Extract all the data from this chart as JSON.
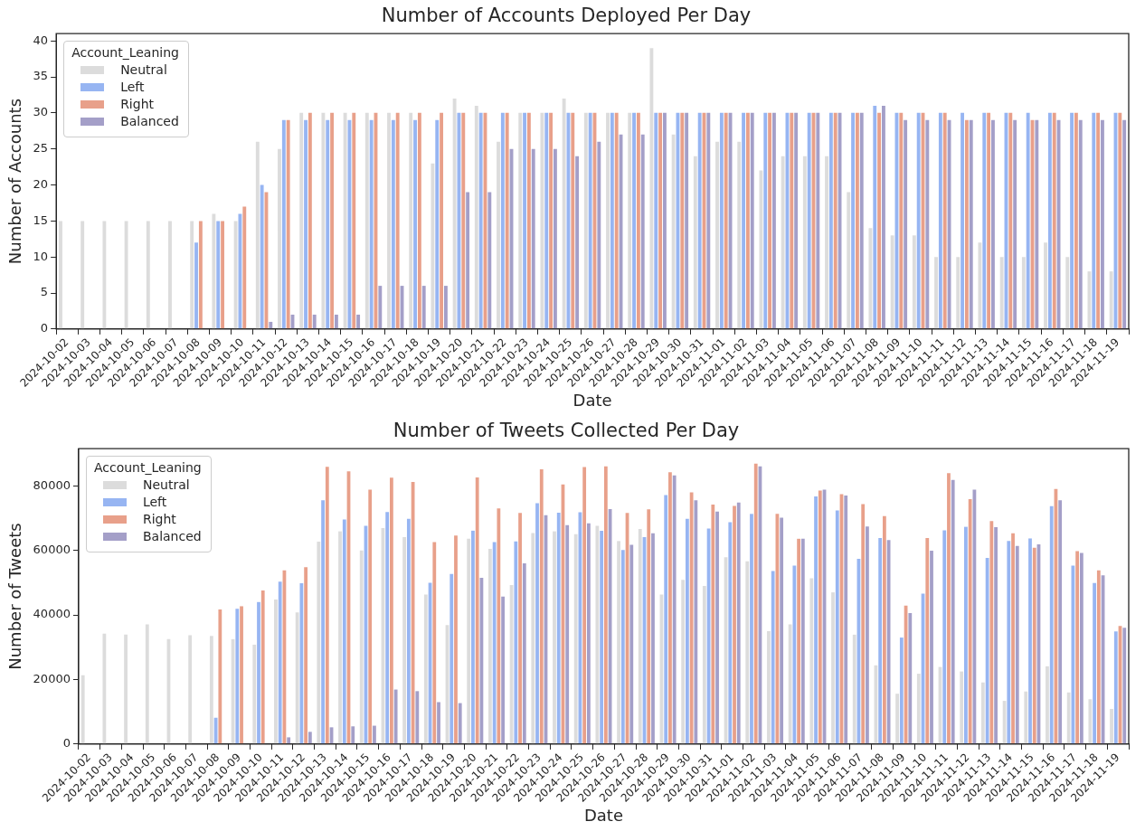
{
  "chart_data": [
    {
      "type": "bar",
      "title": "Number of Accounts Deployed Per Day",
      "xlabel": "Date",
      "ylabel": "Number of Accounts",
      "legend_title": "Account_Leaning",
      "legend": "top left",
      "categories": [
        "2024-10-02",
        "2024-10-03",
        "2024-10-04",
        "2024-10-05",
        "2024-10-06",
        "2024-10-07",
        "2024-10-08",
        "2024-10-09",
        "2024-10-10",
        "2024-10-11",
        "2024-10-12",
        "2024-10-13",
        "2024-10-14",
        "2024-10-15",
        "2024-10-16",
        "2024-10-17",
        "2024-10-18",
        "2024-10-19",
        "2024-10-20",
        "2024-10-21",
        "2024-10-22",
        "2024-10-23",
        "2024-10-24",
        "2024-10-25",
        "2024-10-26",
        "2024-10-27",
        "2024-10-28",
        "2024-10-29",
        "2024-10-30",
        "2024-10-31",
        "2024-11-01",
        "2024-11-02",
        "2024-11-03",
        "2024-11-04",
        "2024-11-05",
        "2024-11-06",
        "2024-11-07",
        "2024-11-08",
        "2024-11-09",
        "2024-11-10",
        "2024-11-11",
        "2024-11-12",
        "2024-11-13",
        "2024-11-14",
        "2024-11-15",
        "2024-11-16",
        "2024-11-17",
        "2024-11-18",
        "2024-11-19"
      ],
      "series": [
        {
          "name": "Neutral",
          "color": "#dcdcdc",
          "values": [
            15,
            15,
            15,
            15,
            15,
            15,
            15,
            16,
            15,
            26,
            25,
            30,
            30,
            30,
            30,
            30,
            30,
            23,
            32,
            31,
            26,
            30,
            30,
            32,
            30,
            30,
            30,
            39,
            27,
            24,
            26,
            26,
            22,
            24,
            24,
            24,
            19,
            14,
            13,
            13,
            10,
            10,
            12,
            10,
            10,
            12,
            10,
            8,
            8
          ]
        },
        {
          "name": "Left",
          "color": "#97b5f2",
          "values": [
            null,
            null,
            null,
            null,
            null,
            null,
            12,
            15,
            16,
            20,
            29,
            29,
            29,
            29,
            29,
            29,
            29,
            29,
            30,
            30,
            30,
            30,
            30,
            30,
            30,
            30,
            30,
            30,
            30,
            30,
            30,
            30,
            30,
            30,
            30,
            30,
            30,
            31,
            30,
            30,
            30,
            30,
            30,
            30,
            30,
            30,
            30,
            30,
            30
          ]
        },
        {
          "name": "Right",
          "color": "#e8a08a",
          "values": [
            null,
            null,
            null,
            null,
            null,
            null,
            15,
            15,
            17,
            19,
            29,
            30,
            30,
            30,
            30,
            30,
            30,
            30,
            30,
            30,
            30,
            30,
            30,
            30,
            30,
            30,
            30,
            30,
            30,
            30,
            30,
            30,
            30,
            30,
            30,
            30,
            30,
            30,
            30,
            30,
            30,
            29,
            30,
            30,
            29,
            30,
            30,
            30,
            30
          ]
        },
        {
          "name": "Balanced",
          "color": "#a49fc8",
          "values": [
            null,
            null,
            null,
            null,
            null,
            null,
            null,
            null,
            null,
            1,
            2,
            2,
            2,
            2,
            6,
            6,
            6,
            6,
            19,
            19,
            25,
            25,
            25,
            24,
            26,
            27,
            27,
            30,
            30,
            30,
            30,
            30,
            30,
            30,
            30,
            30,
            30,
            31,
            29,
            29,
            29,
            29,
            29,
            29,
            29,
            29,
            29,
            29,
            29
          ]
        }
      ],
      "ylim": [
        0,
        41
      ],
      "yticks": [
        0,
        5,
        10,
        15,
        20,
        25,
        30,
        35,
        40
      ]
    },
    {
      "type": "bar",
      "title": "Number of Tweets Collected Per Day",
      "xlabel": "Date",
      "ylabel": "Number of Tweets",
      "legend_title": "Account_Leaning",
      "legend": "top left",
      "categories": [
        "2024-10-02",
        "2024-10-03",
        "2024-10-04",
        "2024-10-05",
        "2024-10-06",
        "2024-10-07",
        "2024-10-08",
        "2024-10-09",
        "2024-10-10",
        "2024-10-11",
        "2024-10-12",
        "2024-10-13",
        "2024-10-14",
        "2024-10-15",
        "2024-10-16",
        "2024-10-17",
        "2024-10-18",
        "2024-10-19",
        "2024-10-20",
        "2024-10-21",
        "2024-10-22",
        "2024-10-23",
        "2024-10-24",
        "2024-10-25",
        "2024-10-26",
        "2024-10-27",
        "2024-10-28",
        "2024-10-29",
        "2024-10-30",
        "2024-10-31",
        "2024-11-01",
        "2024-11-02",
        "2024-11-03",
        "2024-11-04",
        "2024-11-05",
        "2024-11-06",
        "2024-11-07",
        "2024-11-08",
        "2024-11-09",
        "2024-11-10",
        "2024-11-11",
        "2024-11-12",
        "2024-11-13",
        "2024-11-14",
        "2024-11-15",
        "2024-11-16",
        "2024-11-17",
        "2024-11-18",
        "2024-11-19"
      ],
      "series": [
        {
          "name": "Neutral",
          "color": "#dcdcdc",
          "values": [
            21300,
            34200,
            33900,
            37100,
            32500,
            33700,
            33500,
            32500,
            30800,
            44800,
            40800,
            62700,
            65900,
            60000,
            66900,
            64100,
            46300,
            36900,
            63600,
            60500,
            49300,
            65400,
            65900,
            65000,
            67600,
            62900,
            66600,
            46300,
            50900,
            49000,
            57900,
            56600,
            35000,
            37100,
            51400,
            47000,
            33900,
            24400,
            15600,
            21800,
            23900,
            22500,
            19100,
            13400,
            16300,
            24100,
            16000,
            13900,
            10900
          ]
        },
        {
          "name": "Left",
          "color": "#97b5f2",
          "values": [
            null,
            null,
            null,
            null,
            null,
            null,
            8200,
            41900,
            44000,
            50300,
            49800,
            75500,
            69600,
            67600,
            71900,
            69800,
            50000,
            52700,
            66100,
            62600,
            62800,
            74600,
            71700,
            71800,
            66100,
            60100,
            64100,
            77100,
            69800,
            66800,
            68700,
            71300,
            53600,
            55300,
            76700,
            72400,
            57400,
            63800,
            33000,
            46600,
            66200,
            67300,
            57700,
            62900,
            63700,
            73700,
            55300,
            49900,
            34900
          ]
        },
        {
          "name": "Right",
          "color": "#e8a08a",
          "values": [
            null,
            null,
            null,
            null,
            null,
            null,
            41700,
            42700,
            47600,
            53800,
            54800,
            85900,
            84500,
            78800,
            82500,
            81200,
            62600,
            64600,
            82600,
            73000,
            71600,
            85100,
            80400,
            85800,
            86000,
            71600,
            72700,
            84200,
            78000,
            74200,
            73800,
            86900,
            71300,
            63600,
            78500,
            77400,
            74300,
            70600,
            42900,
            63800,
            83900,
            75900,
            69100,
            65300,
            60800,
            79000,
            59800,
            53800,
            36600
          ]
        },
        {
          "name": "Balanced",
          "color": "#a49fc8",
          "values": [
            null,
            null,
            null,
            null,
            null,
            null,
            null,
            null,
            null,
            2100,
            3800,
            5200,
            5500,
            5700,
            16900,
            16400,
            13000,
            12700,
            51500,
            45700,
            56000,
            70900,
            67800,
            68400,
            72800,
            61700,
            65300,
            83200,
            75500,
            72000,
            74800,
            86000,
            70100,
            63600,
            78800,
            77000,
            67400,
            63200,
            40600,
            59900,
            81800,
            78800,
            67200,
            61400,
            61900,
            75500,
            59200,
            52300,
            36000
          ]
        }
      ],
      "ylim": [
        0,
        91500
      ],
      "yticks": [
        0,
        20000,
        40000,
        60000,
        80000
      ]
    }
  ]
}
